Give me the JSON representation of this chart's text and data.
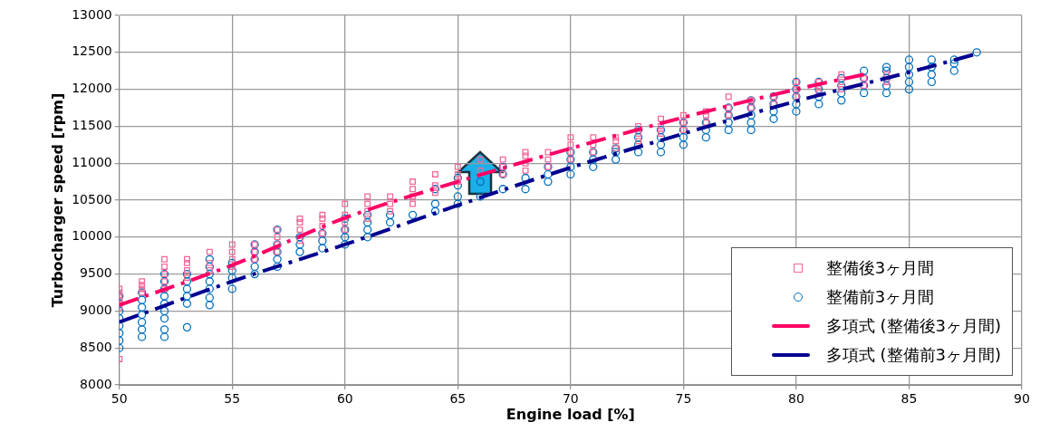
{
  "chart_data": {
    "type": "scatter",
    "xlabel": "Engine load [%]",
    "ylabel": "Turbocharger speed [rpm]",
    "xlim": [
      50,
      90
    ],
    "xticks": [
      50,
      55,
      60,
      65,
      70,
      75,
      80,
      85,
      90
    ],
    "ylim": [
      8000,
      13000
    ],
    "yticks": [
      8000,
      8500,
      9000,
      9500,
      10000,
      10500,
      11000,
      11500,
      12000,
      12500,
      13000
    ],
    "grid": true,
    "legend": "bottom right",
    "series": [
      {
        "name": "整備後3ヶ月間",
        "type": "scatter",
        "marker": "square",
        "color": "#f06a9a",
        "x": [
          50,
          50,
          50,
          50,
          50,
          50,
          50,
          51,
          51,
          51,
          51,
          52,
          52,
          52,
          52,
          52,
          53,
          53,
          53,
          53,
          54,
          54,
          54,
          55,
          55,
          55,
          55,
          56,
          56,
          56,
          57,
          57,
          57,
          57,
          58,
          58,
          58,
          58,
          59,
          59,
          59,
          59,
          60,
          60,
          60,
          60,
          61,
          61,
          61,
          61,
          62,
          62,
          62,
          63,
          63,
          63,
          63,
          64,
          64,
          64,
          65,
          65,
          65,
          66,
          66,
          67,
          67,
          67,
          68,
          68,
          68,
          68,
          69,
          69,
          69,
          70,
          70,
          70,
          70,
          71,
          71,
          71,
          72,
          72,
          72,
          73,
          73,
          73,
          74,
          74,
          74,
          75,
          75,
          75,
          76,
          76,
          76,
          77,
          77,
          77,
          78,
          78,
          79,
          79,
          80,
          80,
          80,
          81,
          81,
          81,
          82,
          82,
          82,
          83,
          83,
          84,
          84
        ],
        "values": [
          8350,
          9050,
          9100,
          9150,
          9200,
          9250,
          9300,
          9250,
          9300,
          9350,
          9400,
          9300,
          9400,
          9500,
          9600,
          9700,
          9450,
          9550,
          9650,
          9700,
          9550,
          9650,
          9800,
          9600,
          9700,
          9800,
          9900,
          9700,
          9800,
          9900,
          9800,
          9900,
          10000,
          10100,
          9950,
          10100,
          10200,
          10250,
          10050,
          10150,
          10250,
          10300,
          10100,
          10200,
          10300,
          10450,
          10250,
          10350,
          10450,
          10550,
          10350,
          10450,
          10550,
          10450,
          10550,
          10650,
          10750,
          10600,
          10700,
          10850,
          10750,
          10850,
          10950,
          10900,
          11050,
          10850,
          10950,
          11050,
          10900,
          11000,
          11100,
          11150,
          10950,
          11050,
          11150,
          11050,
          11150,
          11250,
          11350,
          11150,
          11250,
          11350,
          11200,
          11300,
          11350,
          11300,
          11400,
          11500,
          11400,
          11500,
          11600,
          11450,
          11550,
          11650,
          11550,
          11650,
          11700,
          11650,
          11750,
          11900,
          11750,
          11850,
          11800,
          11900,
          11900,
          12000,
          12100,
          11950,
          12050,
          12100,
          12000,
          12100,
          12200,
          12050,
          12150,
          12100,
          12200
        ]
      },
      {
        "name": "整備前3ヶ月間",
        "type": "scatter",
        "marker": "circle",
        "color": "#0070c0",
        "x": [
          50,
          50,
          50,
          50,
          50,
          50,
          50,
          50,
          51,
          51,
          51,
          51,
          51,
          51,
          51,
          52,
          52,
          52,
          52,
          52,
          52,
          52,
          52,
          52,
          53,
          53,
          53,
          53,
          53,
          53,
          54,
          54,
          54,
          54,
          54,
          54,
          54,
          55,
          55,
          55,
          55,
          56,
          56,
          56,
          56,
          56,
          57,
          57,
          57,
          57,
          57,
          58,
          58,
          58,
          59,
          59,
          59,
          60,
          60,
          60,
          60,
          61,
          61,
          61,
          61,
          62,
          62,
          63,
          64,
          64,
          64,
          65,
          65,
          65,
          65,
          66,
          66,
          67,
          67,
          67,
          68,
          68,
          69,
          69,
          69,
          70,
          70,
          70,
          70,
          71,
          71,
          71,
          72,
          72,
          72,
          73,
          73,
          73,
          73,
          74,
          74,
          74,
          74,
          75,
          75,
          75,
          75,
          76,
          76,
          76,
          77,
          77,
          77,
          77,
          78,
          78,
          78,
          78,
          78,
          79,
          79,
          79,
          79,
          80,
          80,
          80,
          80,
          80,
          81,
          81,
          81,
          81,
          82,
          82,
          82,
          82,
          83,
          83,
          83,
          83,
          84,
          84,
          84,
          84,
          84,
          85,
          85,
          85,
          85,
          85,
          86,
          86,
          86,
          86,
          87,
          87,
          87,
          88
        ],
        "values": [
          8500,
          8600,
          8700,
          8800,
          8900,
          9000,
          9100,
          9200,
          8650,
          8750,
          8850,
          8950,
          9050,
          9150,
          9250,
          8650,
          8750,
          8900,
          9000,
          9100,
          9200,
          9300,
          9400,
          9500,
          8780,
          9100,
          9200,
          9300,
          9400,
          9500,
          9080,
          9180,
          9300,
          9400,
          9500,
          9600,
          9700,
          9300,
          9450,
          9550,
          9650,
          9500,
          9600,
          9700,
          9800,
          9900,
          9600,
          9700,
          9800,
          9900,
          10100,
          9800,
          9900,
          10000,
          9850,
          9950,
          10050,
          9900,
          10000,
          10100,
          10250,
          10000,
          10100,
          10200,
          10300,
          10200,
          10300,
          10300,
          10350,
          10450,
          10650,
          10450,
          10550,
          10700,
          10800,
          10550,
          10750,
          10650,
          10850,
          10950,
          10650,
          10800,
          10750,
          10850,
          10950,
          10850,
          10950,
          11050,
          11150,
          10950,
          11050,
          11150,
          11050,
          11150,
          11200,
          11150,
          11250,
          11350,
          11450,
          11150,
          11250,
          11350,
          11450,
          11250,
          11350,
          11450,
          11550,
          11350,
          11450,
          11550,
          11450,
          11550,
          11650,
          11750,
          11450,
          11550,
          11650,
          11750,
          11850,
          11600,
          11700,
          11800,
          11900,
          11700,
          11800,
          11900,
          12000,
          12100,
          11800,
          11900,
          12000,
          12100,
          11850,
          11950,
          12050,
          12150,
          11950,
          12050,
          12150,
          12250,
          11950,
          12050,
          12150,
          12250,
          12300,
          12000,
          12100,
          12200,
          12300,
          12400,
          12100,
          12200,
          12300,
          12400,
          12250,
          12350,
          12400,
          12500
        ]
      },
      {
        "name": "多項式 (整備後3ヶ月間)",
        "type": "line",
        "marker": "none",
        "line_style": "dashed",
        "color": "#ff0066",
        "x": [
          50,
          55,
          60,
          65,
          70,
          75,
          80,
          83
        ],
        "values": [
          9080,
          9620,
          10260,
          10750,
          11200,
          11620,
          12000,
          12200
        ]
      },
      {
        "name": "多項式 (整備前3ヶ月間)",
        "type": "line",
        "marker": "none",
        "line_style": "dashed",
        "color": "#000090",
        "x": [
          50,
          55,
          60,
          65,
          70,
          75,
          80,
          85,
          88
        ],
        "values": [
          8850,
          9400,
          9900,
          10430,
          10940,
          11400,
          11840,
          12230,
          12480
        ]
      }
    ]
  }
}
